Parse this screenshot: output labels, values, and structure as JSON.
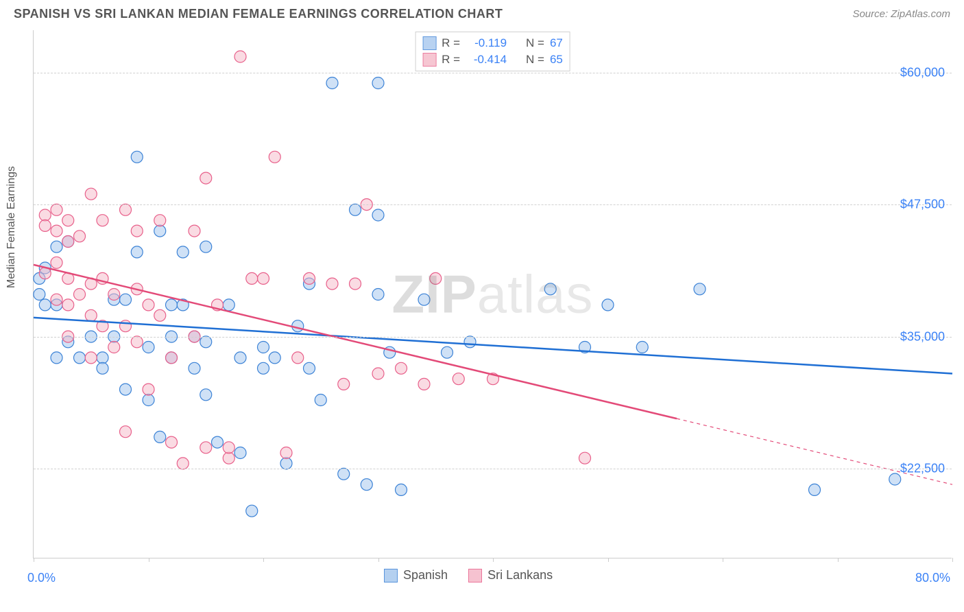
{
  "header": {
    "title": "SPANISH VS SRI LANKAN MEDIAN FEMALE EARNINGS CORRELATION CHART",
    "source": "Source: ZipAtlas.com"
  },
  "ylabel": "Median Female Earnings",
  "watermark": {
    "zip": "ZIP",
    "atlas": "atlas"
  },
  "chart": {
    "type": "scatter-with-regression",
    "xlim": [
      0,
      80
    ],
    "ylim": [
      14000,
      64000
    ],
    "xaxis_min_label": "0.0%",
    "xaxis_max_label": "80.0%",
    "yticks": [
      22500,
      35000,
      47500,
      60000
    ],
    "ytick_labels": [
      "$22,500",
      "$35,000",
      "$47,500",
      "$60,000"
    ],
    "xtick_positions": [
      0,
      10,
      20,
      30,
      40,
      50,
      60,
      70,
      80
    ],
    "grid_color": "#d0d0d0",
    "axis_color": "#cccccc",
    "background_color": "#ffffff",
    "label_color": "#3b82f6",
    "axis_label_color": "#555555",
    "point_radius": 8.5,
    "point_stroke_width": 1.2,
    "line_width": 2.5,
    "series": [
      {
        "name": "Spanish",
        "R": "-0.119",
        "N": "67",
        "fill": "#a7c8ee",
        "stroke": "#3b82d6",
        "fill_opacity": 0.55,
        "line_color": "#1f6fd4",
        "regression": {
          "x1": 0,
          "y1": 36800,
          "x2": 80,
          "y2": 31500,
          "solid_until_x": 80
        },
        "points": [
          [
            0.5,
            40500
          ],
          [
            0.5,
            39000
          ],
          [
            1,
            41500
          ],
          [
            1,
            38000
          ],
          [
            2,
            43500
          ],
          [
            2,
            38000
          ],
          [
            2,
            33000
          ],
          [
            3,
            44000
          ],
          [
            3,
            34500
          ],
          [
            4,
            33000
          ],
          [
            5,
            35000
          ],
          [
            6,
            33000
          ],
          [
            6,
            32000
          ],
          [
            7,
            38500
          ],
          [
            7,
            35000
          ],
          [
            8,
            38500
          ],
          [
            8,
            30000
          ],
          [
            9,
            52000
          ],
          [
            9,
            43000
          ],
          [
            10,
            34000
          ],
          [
            10,
            29000
          ],
          [
            11,
            45000
          ],
          [
            11,
            25500
          ],
          [
            12,
            38000
          ],
          [
            12,
            35000
          ],
          [
            12,
            33000
          ],
          [
            13,
            43000
          ],
          [
            13,
            38000
          ],
          [
            14,
            35000
          ],
          [
            14,
            32000
          ],
          [
            15,
            43500
          ],
          [
            15,
            34500
          ],
          [
            15,
            29500
          ],
          [
            16,
            25000
          ],
          [
            17,
            38000
          ],
          [
            18,
            33000
          ],
          [
            18,
            24000
          ],
          [
            19,
            18500
          ],
          [
            20,
            34000
          ],
          [
            20,
            32000
          ],
          [
            21,
            33000
          ],
          [
            22,
            23000
          ],
          [
            23,
            36000
          ],
          [
            24,
            40000
          ],
          [
            24,
            32000
          ],
          [
            25,
            29000
          ],
          [
            26,
            59000
          ],
          [
            27,
            22000
          ],
          [
            28,
            47000
          ],
          [
            29,
            21000
          ],
          [
            30,
            46500
          ],
          [
            30,
            39000
          ],
          [
            30,
            59000
          ],
          [
            31,
            33500
          ],
          [
            32,
            20500
          ],
          [
            34,
            38500
          ],
          [
            36,
            33500
          ],
          [
            38,
            34500
          ],
          [
            45,
            39500
          ],
          [
            48,
            34000
          ],
          [
            50,
            38000
          ],
          [
            53,
            34000
          ],
          [
            58,
            39500
          ],
          [
            68,
            20500
          ],
          [
            75,
            21500
          ]
        ]
      },
      {
        "name": "Sri Lankans",
        "R": "-0.414",
        "N": "65",
        "fill": "#f5b8c8",
        "stroke": "#e85f8a",
        "fill_opacity": 0.5,
        "line_color": "#e34a78",
        "regression": {
          "x1": 0,
          "y1": 41800,
          "x2": 80,
          "y2": 21000,
          "solid_until_x": 56
        },
        "points": [
          [
            1,
            46500
          ],
          [
            1,
            45500
          ],
          [
            1,
            41000
          ],
          [
            2,
            47000
          ],
          [
            2,
            45000
          ],
          [
            2,
            42000
          ],
          [
            2,
            38500
          ],
          [
            3,
            46000
          ],
          [
            3,
            44000
          ],
          [
            3,
            40500
          ],
          [
            3,
            38000
          ],
          [
            3,
            35000
          ],
          [
            4,
            44500
          ],
          [
            4,
            39000
          ],
          [
            5,
            48500
          ],
          [
            5,
            40000
          ],
          [
            5,
            37000
          ],
          [
            5,
            33000
          ],
          [
            6,
            46000
          ],
          [
            6,
            40500
          ],
          [
            6,
            36000
          ],
          [
            7,
            39000
          ],
          [
            7,
            34000
          ],
          [
            8,
            47000
          ],
          [
            8,
            36000
          ],
          [
            8,
            26000
          ],
          [
            9,
            45000
          ],
          [
            9,
            39500
          ],
          [
            9,
            34500
          ],
          [
            10,
            38000
          ],
          [
            10,
            30000
          ],
          [
            11,
            46000
          ],
          [
            11,
            37000
          ],
          [
            12,
            33000
          ],
          [
            12,
            25000
          ],
          [
            13,
            23000
          ],
          [
            14,
            45000
          ],
          [
            14,
            35000
          ],
          [
            15,
            50000
          ],
          [
            15,
            24500
          ],
          [
            16,
            38000
          ],
          [
            17,
            23500
          ],
          [
            17,
            24500
          ],
          [
            18,
            61500
          ],
          [
            19,
            40500
          ],
          [
            20,
            40500
          ],
          [
            21,
            52000
          ],
          [
            22,
            24000
          ],
          [
            23,
            33000
          ],
          [
            24,
            40500
          ],
          [
            26,
            40000
          ],
          [
            27,
            30500
          ],
          [
            28,
            40000
          ],
          [
            29,
            47500
          ],
          [
            30,
            31500
          ],
          [
            32,
            32000
          ],
          [
            34,
            30500
          ],
          [
            35,
            40500
          ],
          [
            37,
            31000
          ],
          [
            40,
            31000
          ],
          [
            48,
            23500
          ]
        ]
      }
    ],
    "legend_top_label_R": "R = ",
    "legend_top_label_N": "N = "
  },
  "legend_bottom": {
    "items": [
      "Spanish",
      "Sri Lankans"
    ]
  }
}
